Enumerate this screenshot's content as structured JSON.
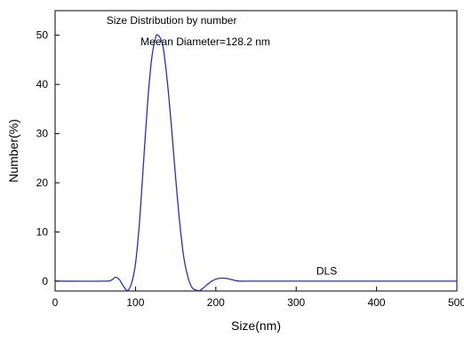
{
  "chart_data": {
    "type": "line",
    "title": "",
    "xlabel": "Size(nm)",
    "ylabel": "Number(%)",
    "xlim": [
      0,
      500
    ],
    "ylim": [
      -2,
      55
    ],
    "xticks": [
      0,
      100,
      200,
      300,
      400,
      500
    ],
    "yticks": [
      0,
      10,
      20,
      30,
      40,
      50
    ],
    "grid": false,
    "line_color": "#2b2bd6",
    "annotations": [
      {
        "text": "Size Distribution by number",
        "x": 145,
        "y": 52.3
      },
      {
        "text": "Meean Diameter=128.2 nm",
        "x": 187,
        "y": 48
      },
      {
        "text": "DLS",
        "x": 338,
        "y": 1.3
      }
    ],
    "series": [
      {
        "x": [
          0,
          60,
          70,
          75,
          80,
          85,
          90,
          95,
          100,
          105,
          110,
          115,
          120,
          125,
          128,
          132,
          135,
          140,
          145,
          150,
          155,
          160,
          165,
          170,
          175,
          180,
          185,
          190,
          195,
          200,
          205,
          210,
          215,
          220,
          225,
          230,
          240,
          300,
          400,
          500
        ],
        "y": [
          0,
          0,
          0.2,
          0.8,
          0.3,
          -1.0,
          -1.9,
          -0.5,
          3.5,
          12,
          24,
          36,
          45,
          49.5,
          50,
          49,
          47,
          40,
          31,
          21,
          12,
          5,
          1,
          -1.2,
          -1.8,
          -1.9,
          -1.3,
          -0.6,
          0,
          0.4,
          0.6,
          0.6,
          0.5,
          0.3,
          0.1,
          0,
          0,
          0,
          0,
          0
        ]
      }
    ]
  }
}
